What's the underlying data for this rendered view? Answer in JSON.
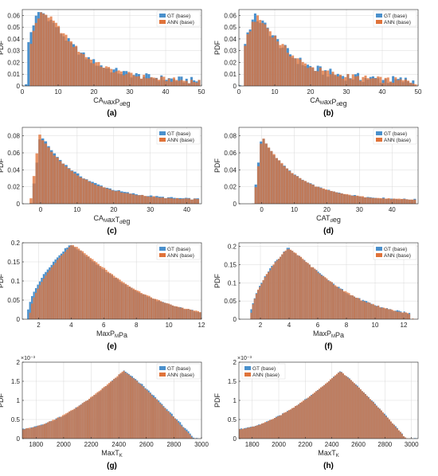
{
  "colors": {
    "gt": "#4a90cc",
    "ann": "#e0733a",
    "overlap": "#9e6e52",
    "axis": "#262626",
    "grid": "#d9d9d9"
  },
  "legend": {
    "gt": "GT (base)",
    "ann": "ANN (base)"
  },
  "chart_data": [
    {
      "label": "(a)",
      "type": "histogram",
      "ylabel": "PDF",
      "xlabel": "CA_MaxP_deg",
      "xlabel_parts": [
        "CA",
        "M",
        "axP",
        "d",
        "eg"
      ],
      "xlim": [
        0,
        50
      ],
      "ylim": [
        0,
        0.065
      ],
      "xticks": [
        0,
        10,
        20,
        30,
        40,
        50
      ],
      "yticks": [
        0,
        0.01,
        0.02,
        0.03,
        0.04,
        0.05,
        0.06
      ],
      "ytick_labels": [
        "0",
        "0.01",
        "0.02",
        "0.03",
        "0.04",
        "0.05",
        "0.06"
      ],
      "bins": {
        "start": 0,
        "width": 0.7
      },
      "shape": {
        "kind": "gamma",
        "peak": 5,
        "height": 0.063,
        "tail": 0.3,
        "noise": 0.003
      },
      "offset": {
        "x": 0.6,
        "y": 0.002
      },
      "legend_position": "top-right",
      "series": [
        {
          "name": "GT (base)"
        },
        {
          "name": "ANN (base)"
        }
      ]
    },
    {
      "label": "(b)",
      "type": "histogram",
      "ylabel": "PDF",
      "xlabel": "CA_MaxP_deg",
      "xlabel_parts": [
        "CA",
        "M",
        "axP",
        "d",
        "eg"
      ],
      "xlim": [
        0,
        50
      ],
      "ylim": [
        0,
        0.065
      ],
      "xticks": [
        0,
        10,
        20,
        30,
        40,
        50
      ],
      "yticks": [
        0,
        0.01,
        0.02,
        0.03,
        0.04,
        0.05,
        0.06
      ],
      "ytick_labels": [
        "0",
        "0.01",
        "0.02",
        "0.03",
        "0.04",
        "0.05",
        "0.06"
      ],
      "bins": {
        "start": 0,
        "width": 0.7
      },
      "shape": {
        "kind": "gamma",
        "peak": 4.5,
        "height": 0.058,
        "tail": 0.3,
        "noise": 0.004
      },
      "offset": {
        "x": 0.3,
        "y": 0.0008
      },
      "legend_position": "top-right",
      "series": [
        {
          "name": "GT (base)"
        },
        {
          "name": "ANN (base)"
        }
      ]
    },
    {
      "label": "(c)",
      "type": "histogram",
      "ylabel": "PDF",
      "xlabel": "CA_MaxT_deg",
      "xlabel_parts": [
        "CA",
        "M",
        "axT",
        "d",
        "eg"
      ],
      "xlim": [
        -5,
        44
      ],
      "ylim": [
        0,
        0.09
      ],
      "xticks": [
        0,
        10,
        20,
        30,
        40
      ],
      "yticks": [
        0,
        0.02,
        0.04,
        0.06,
        0.08
      ],
      "ytick_labels": [
        "0",
        "0.02",
        "0.04",
        "0.06",
        "0.08"
      ],
      "bins": {
        "start": -3,
        "width": 0.8
      },
      "shape": {
        "kind": "peaked",
        "peak": 0,
        "height": 0.082,
        "tail": 0.075,
        "noise": 0.001
      },
      "offset": {
        "x": -0.3,
        "y": 0.001
      },
      "legend_position": "top-right",
      "series": [
        {
          "name": "GT (base)"
        },
        {
          "name": "ANN (base)"
        }
      ]
    },
    {
      "label": "(d)",
      "type": "histogram",
      "ylabel": "PDF",
      "xlabel": "CA_T_deg",
      "xlabel_parts": [
        "CA",
        "",
        "T",
        "d",
        "eg"
      ],
      "xlim": [
        -7,
        48
      ],
      "ylim": [
        0,
        0.09
      ],
      "xticks": [
        0,
        10,
        20,
        30,
        40
      ],
      "yticks": [
        0,
        0.02,
        0.04,
        0.06,
        0.08
      ],
      "ytick_labels": [
        "0",
        "0.02",
        "0.04",
        "0.06",
        "0.08"
      ],
      "bins": {
        "start": -3,
        "width": 0.8
      },
      "shape": {
        "kind": "peaked",
        "peak": 0,
        "height": 0.08,
        "tail": 0.07,
        "noise": 0.0008
      },
      "offset": {
        "x": 0.1,
        "y": 0.0005
      },
      "legend_position": "top-right",
      "series": [
        {
          "name": "GT (base)"
        },
        {
          "name": "ANN (base)"
        }
      ]
    },
    {
      "label": "(e)",
      "type": "histogram",
      "ylabel": "PDF",
      "xlabel": "MaxP_MPa",
      "xlabel_parts": [
        "MaxP",
        "M",
        "Pa",
        "",
        ""
      ],
      "xlim": [
        1,
        12
      ],
      "ylim": [
        0,
        0.2
      ],
      "xticks": [
        2,
        4,
        6,
        8,
        10,
        12
      ],
      "yticks": [
        0,
        0.05,
        0.1,
        0.15,
        0.2
      ],
      "ytick_labels": [
        "0",
        "0.05",
        "0.1",
        "0.15",
        "0.2"
      ],
      "bins": {
        "start": 1.3,
        "width": 0.12
      },
      "shape": {
        "kind": "skew",
        "peak": 3.9,
        "height": 0.195,
        "left": 1.3,
        "right": 12,
        "noise": 0.002
      },
      "offset": {
        "x": 0.15,
        "y": 0.002
      },
      "legend_position": "top-right",
      "series": [
        {
          "name": "GT (base)"
        },
        {
          "name": "ANN (base)"
        }
      ]
    },
    {
      "label": "(f)",
      "type": "histogram",
      "ylabel": "PDF",
      "xlabel": "MaxP_MPa",
      "xlabel_parts": [
        "MaxP",
        "M",
        "Pa",
        "",
        ""
      ],
      "xlim": [
        0.5,
        13
      ],
      "ylim": [
        0,
        0.21
      ],
      "xticks": [
        2,
        4,
        6,
        8,
        10,
        12
      ],
      "yticks": [
        0,
        0.05,
        0.1,
        0.15,
        0.2
      ],
      "ytick_labels": [
        "0",
        "0.05",
        "0.1",
        "0.15",
        "0.2"
      ],
      "bins": {
        "start": 1.3,
        "width": 0.12
      },
      "shape": {
        "kind": "skew",
        "peak": 3.9,
        "height": 0.195,
        "left": 1.3,
        "right": 12.5,
        "noise": 0.003
      },
      "offset": {
        "x": 0.02,
        "y": 0.0005
      },
      "legend_position": "top-right",
      "series": [
        {
          "name": "GT (base)"
        },
        {
          "name": "ANN (base)"
        }
      ]
    },
    {
      "label": "(g)",
      "type": "histogram",
      "ylabel": "PDF",
      "scale_label": "×10⁻³",
      "xlabel": "MaxT_K",
      "xlabel_parts": [
        "MaxT",
        "K",
        "",
        "",
        ""
      ],
      "xlim": [
        1700,
        3000
      ],
      "ylim": [
        0,
        2
      ],
      "xticks": [
        1800,
        2000,
        2200,
        2400,
        2600,
        2800,
        3000
      ],
      "yticks": [
        0,
        0.5,
        1,
        1.5,
        2
      ],
      "ytick_labels": [
        "0",
        "0.5",
        "1",
        "1.5",
        "2"
      ],
      "bins": {
        "start": 1700,
        "width": 12
      },
      "shape": {
        "kind": "leftskew",
        "peak": 2440,
        "height": 1.78,
        "left": 1700,
        "right": 2950,
        "base": 0.25,
        "noise": 0.02
      },
      "offset": {
        "x": -8,
        "y": 0.02
      },
      "legend_position": "top-right",
      "series": [
        {
          "name": "GT (base)"
        },
        {
          "name": "ANN (base)"
        }
      ]
    },
    {
      "label": "(h)",
      "type": "histogram",
      "ylabel": "PDF",
      "scale_label": "×10⁻³",
      "xlabel": "MaxT_K",
      "xlabel_parts": [
        "MaxT",
        "K",
        "",
        "",
        ""
      ],
      "xlim": [
        1700,
        3050
      ],
      "ylim": [
        0,
        2
      ],
      "xticks": [
        1800,
        2000,
        2200,
        2400,
        2600,
        2800,
        3000
      ],
      "yticks": [
        0,
        0.5,
        1,
        1.5,
        2
      ],
      "ytick_labels": [
        "0",
        "0.5",
        "1",
        "1.5",
        "2"
      ],
      "bins": {
        "start": 1700,
        "width": 12
      },
      "shape": {
        "kind": "leftskew",
        "peak": 2460,
        "height": 1.76,
        "left": 1700,
        "right": 2960,
        "base": 0.25,
        "noise": 0.015
      },
      "offset": {
        "x": 0,
        "y": 0.005
      },
      "legend_position": "top-left",
      "series": [
        {
          "name": "GT (base)"
        },
        {
          "name": "ANN (base)"
        }
      ]
    }
  ]
}
